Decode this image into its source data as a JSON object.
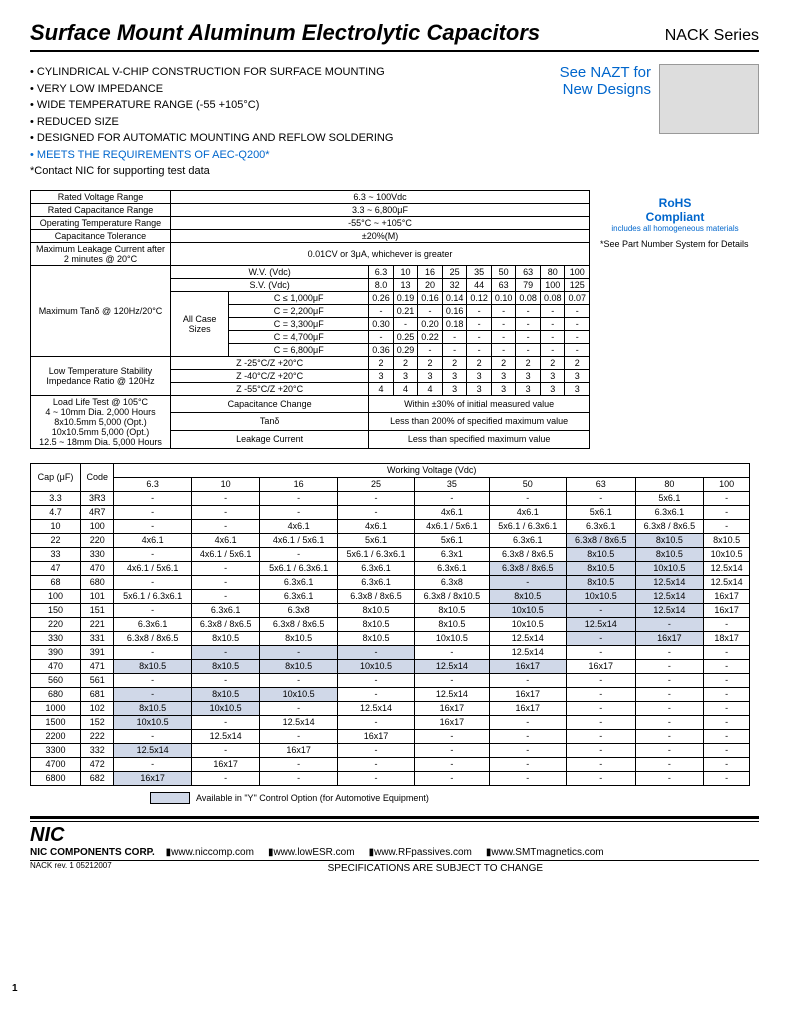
{
  "header": {
    "title": "Surface Mount Aluminum Electrolytic Capacitors",
    "series": "NACK Series"
  },
  "bullets": [
    "CYLINDRICAL V-CHIP CONSTRUCTION FOR SURFACE MOUNTING",
    "VERY LOW IMPEDANCE",
    "WIDE TEMPERATURE RANGE (-55 +105°C)",
    "REDUCED SIZE",
    "DESIGNED FOR AUTOMATIC MOUNTING AND REFLOW SOLDERING",
    "MEETS THE REQUIREMENTS OF AEC-Q200*"
  ],
  "bullet_note": "*Contact NIC for supporting test data",
  "callout": {
    "line1": "See NAZT for",
    "line2": "New Designs"
  },
  "rohs": {
    "title": "RoHS",
    "sub": "Compliant",
    "small": "includes all homogeneous materials",
    "note": "*See Part Number System for Details"
  },
  "spec": {
    "r1": {
      "k": "Rated Voltage Range",
      "v": "6.3 ~ 100Vdc"
    },
    "r2": {
      "k": "Rated Capacitance Range",
      "v": "3.3 ~ 6,800μF"
    },
    "r3": {
      "k": "Operating Temperature Range",
      "v": "-55°C ~ +105°C"
    },
    "r4": {
      "k": "Capacitance Tolerance",
      "v": "±20%(M)"
    },
    "r5": {
      "k": "Maximum Leakage Current after 2 minutes @ 20°C",
      "v": "0.01CV or 3μA, whichever is greater"
    },
    "max_tan": "Maximum Tanδ @ 120Hz/20°C",
    "all_case": "All Case Sizes",
    "wv": "W.V. (Vdc)",
    "sv": "S.V. (Vdc)",
    "wv_vals": [
      "6.3",
      "10",
      "16",
      "25",
      "35",
      "50",
      "63",
      "80",
      "100"
    ],
    "sv_vals": [
      "8.0",
      "13",
      "20",
      "32",
      "44",
      "63",
      "79",
      "100",
      "125"
    ],
    "c_rows": [
      {
        "l": "C ≤ 1,000μF",
        "v": [
          "0.26",
          "0.19",
          "0.16",
          "0.14",
          "0.12",
          "0.10",
          "0.08",
          "0.08",
          "0.07"
        ]
      },
      {
        "l": "C = 2,200μF",
        "v": [
          "-",
          "0.21",
          "-",
          "0.16",
          "-",
          "-",
          "-",
          "-",
          "-"
        ]
      },
      {
        "l": "C = 3,300μF",
        "v": [
          "0.30",
          "-",
          "0.20",
          "0.18",
          "-",
          "-",
          "-",
          "-",
          "-"
        ]
      },
      {
        "l": "C = 4,700μF",
        "v": [
          "-",
          "0.25",
          "0.22",
          "-",
          "-",
          "-",
          "-",
          "-",
          "-"
        ]
      },
      {
        "l": "C = 6,800μF",
        "v": [
          "0.36",
          "0.29",
          "-",
          "-",
          "-",
          "-",
          "-",
          "-",
          "-"
        ]
      }
    ],
    "lts": "Low Temperature Stability Impedance Ratio @ 120Hz",
    "z_rows": [
      {
        "l": "Z -25°C/Z +20°C",
        "v": [
          "2",
          "2",
          "2",
          "2",
          "2",
          "2",
          "2",
          "2",
          "2"
        ]
      },
      {
        "l": "Z -40°C/Z +20°C",
        "v": [
          "3",
          "3",
          "3",
          "3",
          "3",
          "3",
          "3",
          "3",
          "3"
        ]
      },
      {
        "l": "Z -55°C/Z +20°C",
        "v": [
          "4",
          "4",
          "4",
          "3",
          "3",
          "3",
          "3",
          "3",
          "3"
        ]
      }
    ],
    "load_life": "Load Life Test @ 105°C\n4 ~ 10mm Dia. 2,000 Hours\n8x10.5mm 5,000 (Opt.)\n10x10.5mm 5,000 (Opt.)\n12.5 ~ 18mm Dia. 5,000 Hours",
    "ll_rows": [
      {
        "l": "Capacitance Change",
        "v": "Within ±30% of initial measured value"
      },
      {
        "l": "Tanδ",
        "v": "Less than 200% of specified maximum value"
      },
      {
        "l": "Leakage Current",
        "v": "Less than specified maximum value"
      }
    ]
  },
  "size_table": {
    "h1": "Cap (μF)",
    "h2": "Code",
    "h3": "Working Voltage (Vdc)",
    "volts": [
      "6.3",
      "10",
      "16",
      "25",
      "35",
      "50",
      "63",
      "80",
      "100"
    ],
    "rows": [
      [
        "3.3",
        "3R3",
        "-",
        "-",
        "-",
        "-",
        "-",
        "-",
        "-",
        "5x6.1",
        "-"
      ],
      [
        "4.7",
        "4R7",
        "-",
        "-",
        "-",
        "-",
        "4x6.1",
        "4x6.1",
        "5x6.1",
        "6.3x6.1",
        "-"
      ],
      [
        "10",
        "100",
        "-",
        "-",
        "4x6.1",
        "4x6.1",
        "4x6.1 / 5x6.1",
        "5x6.1 / 6.3x6.1",
        "6.3x6.1",
        "6.3x8 / 8x6.5",
        "-"
      ],
      [
        "22",
        "220",
        "4x6.1",
        "4x6.1",
        "4x6.1 / 5x6.1",
        "5x6.1",
        "5x6.1",
        "6.3x6.1",
        "6.3x8 / 8x6.5",
        "8x10.5",
        "8x10.5"
      ],
      [
        "33",
        "330",
        "-",
        "4x6.1 / 5x6.1",
        "-",
        "5x6.1 / 6.3x6.1",
        "6.3x1",
        "6.3x8 / 8x6.5",
        "8x10.5",
        "8x10.5",
        "10x10.5"
      ],
      [
        "47",
        "470",
        "4x6.1 / 5x6.1",
        "-",
        "5x6.1 / 6.3x6.1",
        "6.3x6.1",
        "6.3x6.1",
        "6.3x8 / 8x6.5",
        "8x10.5",
        "10x10.5",
        "12.5x14"
      ],
      [
        "68",
        "680",
        "-",
        "-",
        "6.3x6.1",
        "6.3x6.1",
        "6.3x8",
        "-",
        "8x10.5",
        "12.5x14",
        "12.5x14"
      ],
      [
        "100",
        "101",
        "5x6.1 / 6.3x6.1",
        "-",
        "6.3x6.1",
        "6.3x8 / 8x6.5",
        "6.3x8 / 8x10.5",
        "8x10.5",
        "10x10.5",
        "12.5x14",
        "16x17"
      ],
      [
        "150",
        "151",
        "-",
        "6.3x6.1",
        "6.3x8",
        "8x10.5",
        "8x10.5",
        "10x10.5",
        "-",
        "12.5x14",
        "16x17"
      ],
      [
        "220",
        "221",
        "6.3x6.1",
        "6.3x8 / 8x6.5",
        "6.3x8 / 8x6.5",
        "8x10.5",
        "8x10.5",
        "10x10.5",
        "12.5x14",
        "-",
        "-"
      ],
      [
        "330",
        "331",
        "6.3x8 / 8x6.5",
        "8x10.5",
        "8x10.5",
        "8x10.5",
        "10x10.5",
        "12.5x14",
        "-",
        "16x17",
        "18x17"
      ],
      [
        "390",
        "391",
        "-",
        "-",
        "-",
        "-",
        "-",
        "12.5x14",
        "-",
        "-",
        "-"
      ],
      [
        "470",
        "471",
        "8x10.5",
        "8x10.5",
        "8x10.5",
        "10x10.5",
        "12.5x14",
        "16x17",
        "16x17",
        "-",
        "-"
      ],
      [
        "560",
        "561",
        "-",
        "-",
        "-",
        "-",
        "-",
        "-",
        "-",
        "-",
        "-"
      ],
      [
        "680",
        "681",
        "-",
        "8x10.5",
        "10x10.5",
        "-",
        "12.5x14",
        "16x17",
        "-",
        "-",
        "-"
      ],
      [
        "1000",
        "102",
        "8x10.5",
        "10x10.5",
        "-",
        "12.5x14",
        "16x17",
        "16x17",
        "-",
        "-",
        "-"
      ],
      [
        "1500",
        "152",
        "10x10.5",
        "-",
        "12.5x14",
        "-",
        "16x17",
        "-",
        "-",
        "-",
        "-"
      ],
      [
        "2200",
        "222",
        "-",
        "12.5x14",
        "-",
        "16x17",
        "-",
        "-",
        "-",
        "-",
        "-"
      ],
      [
        "3300",
        "332",
        "12.5x14",
        "-",
        "16x17",
        "-",
        "-",
        "-",
        "-",
        "-",
        "-"
      ],
      [
        "4700",
        "472",
        "-",
        "16x17",
        "-",
        "-",
        "-",
        "-",
        "-",
        "-",
        "-"
      ],
      [
        "6800",
        "682",
        "16x17",
        "-",
        "-",
        "-",
        "-",
        "-",
        "-",
        "-",
        "-"
      ]
    ],
    "shaded": {
      "3": [
        8,
        9
      ],
      "4": [
        8,
        9
      ],
      "5": [
        7,
        8,
        9
      ],
      "6": [
        7,
        8,
        9
      ],
      "7": [
        7,
        8,
        9
      ],
      "8": [
        7,
        8,
        9
      ],
      "9": [
        8,
        9
      ],
      "10": [
        8,
        9
      ],
      "11": [
        3,
        4,
        5
      ],
      "12": [
        2,
        3,
        4,
        5,
        6,
        7
      ],
      "14": [
        2,
        3,
        4
      ],
      "15": [
        2,
        3
      ],
      "16": [
        2
      ],
      "18": [
        2
      ],
      "20": [
        2
      ]
    }
  },
  "legend": "Available in \"Y\" Control Option (for Automotive Equipment)",
  "footer": {
    "logo": "NIC",
    "corp": "NIC COMPONENTS CORP.",
    "urls": [
      "www.niccomp.com",
      "www.lowESR.com",
      "www.RFpassives.com",
      "www.SMTmagnetics.com"
    ],
    "rev": "NACK rev. 1 05212007",
    "subject": "SPECIFICATIONS ARE SUBJECT TO CHANGE",
    "page": "1"
  }
}
